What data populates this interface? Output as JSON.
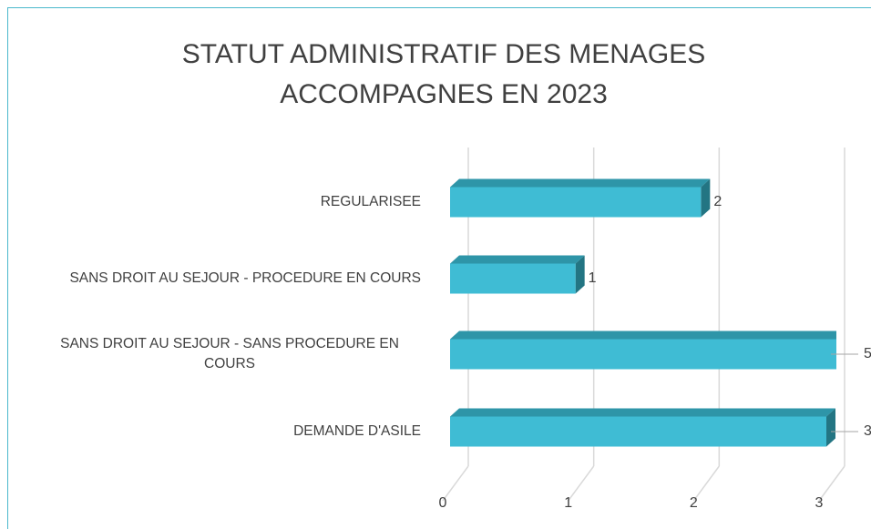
{
  "chart_data": {
    "type": "bar3d_horizontal",
    "title": "STATUT ADMINISTRATIF DES MENAGES ACCOMPAGNES EN 2023",
    "categories": [
      "REGULARISEE",
      "SANS DROIT AU SEJOUR - PROCEDURE EN COURS",
      "SANS DROIT AU SEJOUR - SANS PROCEDURE EN COURS",
      "DEMANDE D'ASILE"
    ],
    "values": [
      2,
      1,
      5,
      3
    ],
    "color": "#3fbcd4",
    "xlim": [
      0,
      3
    ],
    "xticks": [
      0,
      1,
      2,
      3
    ],
    "grid": true
  }
}
